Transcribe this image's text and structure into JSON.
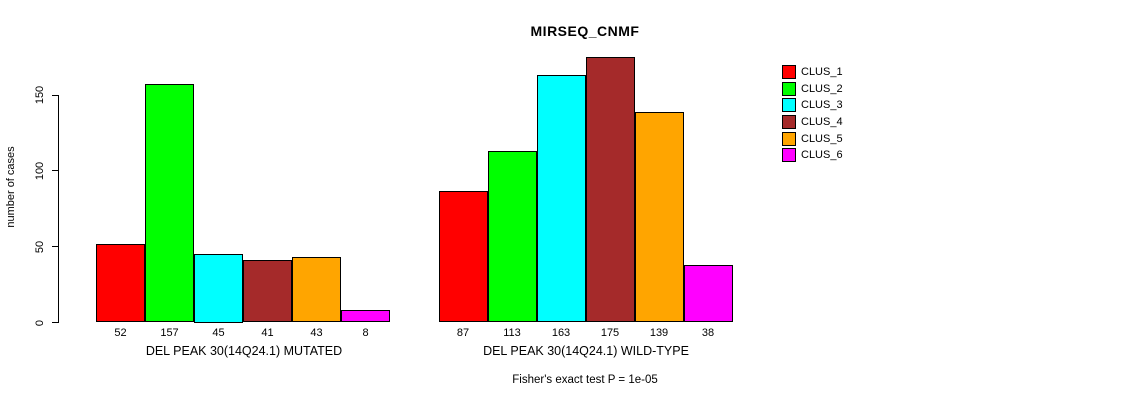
{
  "chart_data": {
    "type": "bar",
    "title": "MIRSEQ_CNMF",
    "ylabel": "number of cases",
    "yticks": [
      0,
      50,
      100,
      150
    ],
    "ylim": [
      0,
      175
    ],
    "grid": false,
    "legend_position": "right",
    "legend": [
      {
        "label": "CLUS_1",
        "color": "#ff0000"
      },
      {
        "label": "CLUS_2",
        "color": "#00ff00"
      },
      {
        "label": "CLUS_3",
        "color": "#00ffff"
      },
      {
        "label": "CLUS_4",
        "color": "#a52a2a"
      },
      {
        "label": "CLUS_5",
        "color": "#ffa500"
      },
      {
        "label": "CLUS_6",
        "color": "#ff00ff"
      }
    ],
    "groups": [
      {
        "xlabel": "DEL PEAK 30(14Q24.1) MUTATED",
        "values": [
          52,
          157,
          45,
          41,
          43,
          8
        ]
      },
      {
        "xlabel": "DEL PEAK 30(14Q24.1) WILD-TYPE",
        "values": [
          87,
          113,
          163,
          175,
          139,
          38
        ]
      }
    ],
    "footnote": "Fisher's exact test P = 1e-05"
  }
}
